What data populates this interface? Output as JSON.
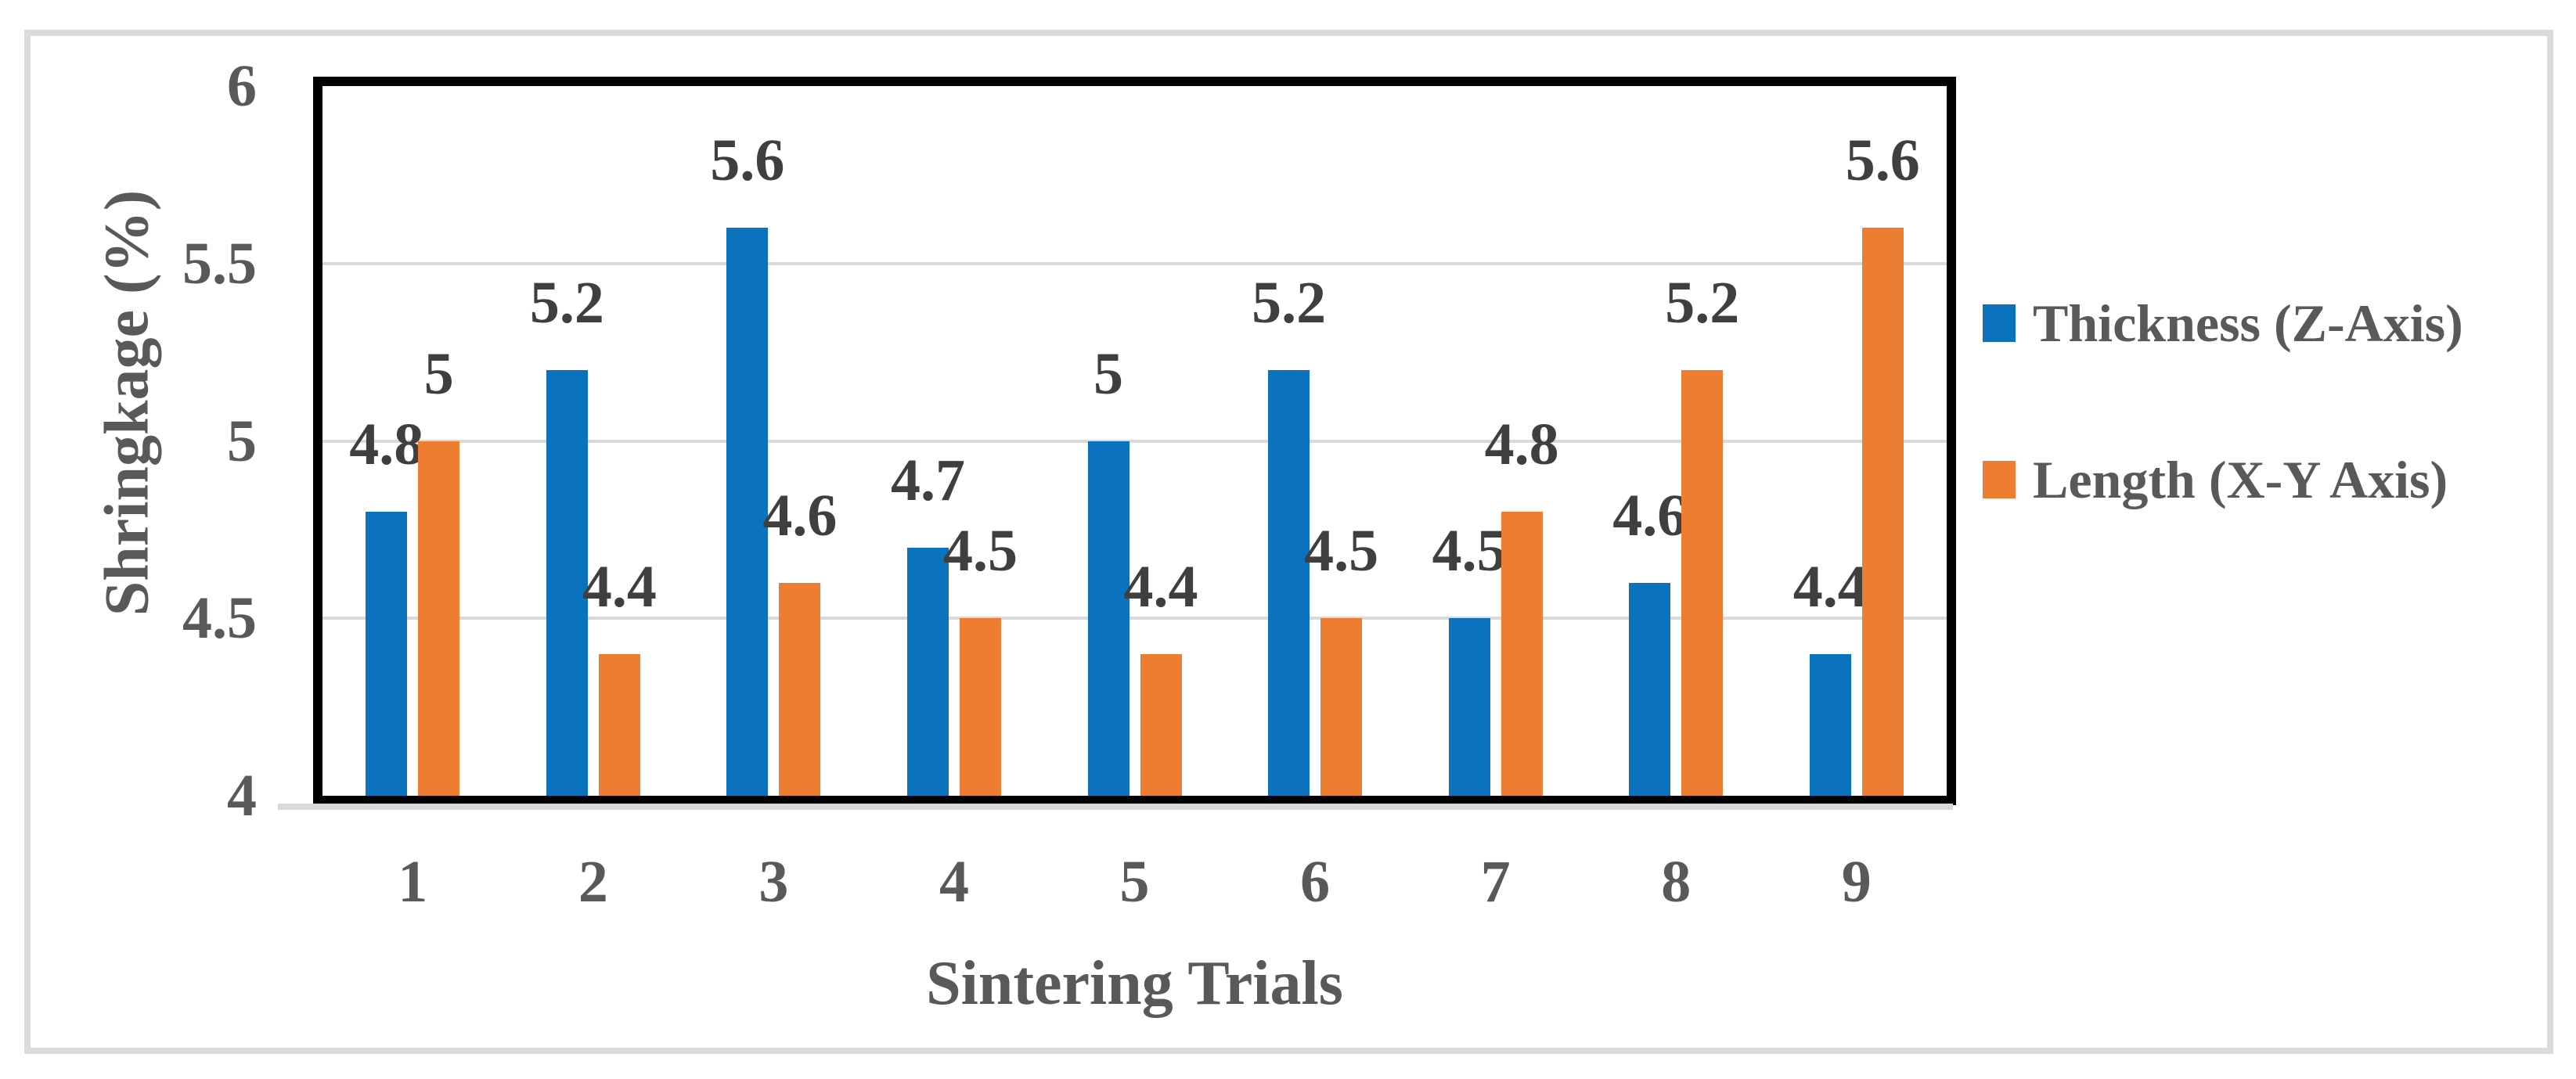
{
  "chart_data": {
    "type": "bar",
    "title": "",
    "xlabel": "Sintering Trials",
    "ylabel": "Shringkage (%)",
    "categories": [
      "1",
      "2",
      "3",
      "4",
      "5",
      "6",
      "7",
      "8",
      "9"
    ],
    "series": [
      {
        "name": "Thickness (Z-Axis)",
        "color": "#0B72BE",
        "values": [
          4.8,
          5.2,
          5.6,
          4.7,
          5,
          5.2,
          4.5,
          4.6,
          4.4
        ]
      },
      {
        "name": "Length (X-Y Axis)",
        "color": "#ED7D31",
        "values": [
          5,
          4.4,
          4.6,
          4.5,
          4.4,
          4.5,
          4.8,
          5.2,
          5.6
        ]
      }
    ],
    "ylim": [
      4,
      6
    ],
    "yticks": [
      {
        "value": 6,
        "label": "6"
      },
      {
        "value": 5.5,
        "label": "5.5"
      },
      {
        "value": 5,
        "label": "5"
      },
      {
        "value": 4.5,
        "label": "4.5"
      },
      {
        "value": 4,
        "label": "4"
      }
    ],
    "gridlines": [
      4.5,
      5,
      5.5
    ],
    "grid": "horizontal",
    "legend_position": "right",
    "data_labels": "outside-end",
    "colors": {
      "text": "#595959",
      "data_label": "#3F3F3F",
      "gridline": "#D9D9D9",
      "axis_line": "#D9D9D9",
      "plot_border": "#000000",
      "figure_border": "#DBDBDB",
      "background": "#FFFFFF"
    }
  }
}
